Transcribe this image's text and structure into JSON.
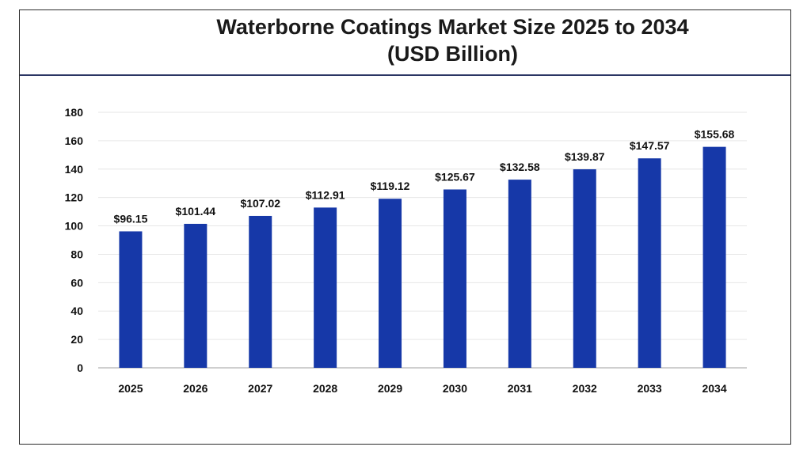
{
  "chart_data": {
    "type": "bar",
    "title": "Waterborne Coatings Market Size 2025 to 2034",
    "subtitle": "(USD Billion)",
    "categories": [
      "2025",
      "2026",
      "2027",
      "2028",
      "2029",
      "2030",
      "2031",
      "2032",
      "2033",
      "2034"
    ],
    "values": [
      96.15,
      101.44,
      107.02,
      112.91,
      119.12,
      125.67,
      132.58,
      139.87,
      147.57,
      155.68
    ],
    "data_labels": [
      "$96.15",
      "$101.44",
      "$107.02",
      "$112.91",
      "$119.12",
      "$125.67",
      "$132.58",
      "$139.87",
      "$147.57",
      "$155.68"
    ],
    "y_ticks": [
      "0",
      "20",
      "40",
      "60",
      "80",
      "100",
      "120",
      "140",
      "160",
      "180"
    ],
    "ylim": [
      0,
      180
    ],
    "xlabel": "",
    "ylabel": "",
    "grid": true,
    "legend": "none",
    "colors": {
      "bar": "#1638a8",
      "grid": "#e6e6e6",
      "axis": "#bfbfbf",
      "title_rule": "#2a3563"
    }
  }
}
